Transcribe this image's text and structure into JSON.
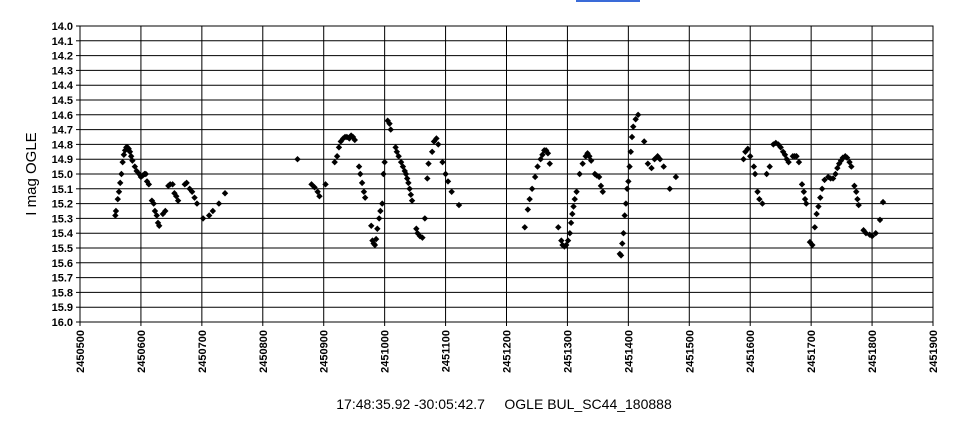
{
  "chart_data": {
    "type": "scatter",
    "title": "17:48:35.92 -30:05:42.7     OGLE BUL_SC44_180888",
    "xlabel": "",
    "ylabel": "I mag OGLE",
    "xlim": [
      2450500,
      2451900
    ],
    "ylim": [
      14.0,
      16.0
    ],
    "y_inverted": true,
    "grid": true,
    "legend": "none",
    "x_ticks": [
      "2450500",
      "2450600",
      "2450700",
      "2450800",
      "2450900",
      "2451000",
      "2451100",
      "2451200",
      "2451300",
      "2451400",
      "2451500",
      "2451600",
      "2451700",
      "2451800",
      "2451900"
    ],
    "y_ticks": [
      "14.0",
      "14.1",
      "14.2",
      "14.3",
      "14.4",
      "14.5",
      "14.6",
      "14.7",
      "14.8",
      "14.9",
      "15.0",
      "15.1",
      "15.2",
      "15.3",
      "15.4",
      "15.5",
      "15.6",
      "15.7",
      "15.8",
      "15.9",
      "16.0"
    ],
    "marker_color": "#000000",
    "series": [
      {
        "points": [
          [
            2450558,
            15.28
          ],
          [
            2450559,
            15.25
          ],
          [
            2450562,
            15.17
          ],
          [
            2450564,
            15.12
          ],
          [
            2450566,
            15.06
          ],
          [
            2450568,
            15.0
          ],
          [
            2450570,
            14.92
          ],
          [
            2450572,
            14.87
          ],
          [
            2450574,
            14.84
          ],
          [
            2450576,
            14.82
          ],
          [
            2450578,
            14.82
          ],
          [
            2450580,
            14.83
          ],
          [
            2450582,
            14.85
          ],
          [
            2450584,
            14.88
          ],
          [
            2450586,
            14.91
          ],
          [
            2450590,
            14.95
          ],
          [
            2450593,
            14.98
          ],
          [
            2450597,
            15.0
          ],
          [
            2450600,
            15.02
          ],
          [
            2450603,
            15.01
          ],
          [
            2450606,
            15.0
          ],
          [
            2450608,
            15.0
          ],
          [
            2450610,
            15.05
          ],
          [
            2450613,
            15.07
          ],
          [
            2450618,
            15.18
          ],
          [
            2450621,
            15.2
          ],
          [
            2450623,
            15.25
          ],
          [
            2450626,
            15.28
          ],
          [
            2450628,
            15.33
          ],
          [
            2450630,
            15.35
          ],
          [
            2450636,
            15.27
          ],
          [
            2450640,
            15.25
          ],
          [
            2450645,
            15.08
          ],
          [
            2450648,
            15.07
          ],
          [
            2450652,
            15.07
          ],
          [
            2450655,
            15.13
          ],
          [
            2450658,
            15.15
          ],
          [
            2450661,
            15.18
          ],
          [
            2450672,
            15.07
          ],
          [
            2450675,
            15.06
          ],
          [
            2450680,
            15.1
          ],
          [
            2450684,
            15.12
          ],
          [
            2450688,
            15.16
          ],
          [
            2450692,
            15.2
          ],
          [
            2450702,
            15.3
          ],
          [
            2450712,
            15.28
          ],
          [
            2450718,
            15.25
          ],
          [
            2450728,
            15.2
          ],
          [
            2450738,
            15.13
          ],
          [
            2450857,
            14.9
          ],
          [
            2450880,
            15.07
          ],
          [
            2450885,
            15.09
          ],
          [
            2450890,
            15.12
          ],
          [
            2450893,
            15.15
          ],
          [
            2450903,
            15.07
          ],
          [
            2450918,
            14.92
          ],
          [
            2450922,
            14.88
          ],
          [
            2450925,
            14.82
          ],
          [
            2450928,
            14.78
          ],
          [
            2450932,
            14.76
          ],
          [
            2450935,
            14.75
          ],
          [
            2450938,
            14.75
          ],
          [
            2450942,
            14.76
          ],
          [
            2450945,
            14.74
          ],
          [
            2450948,
            14.75
          ],
          [
            2450951,
            14.77
          ],
          [
            2450958,
            14.95
          ],
          [
            2450960,
            15.0
          ],
          [
            2450963,
            15.06
          ],
          [
            2450966,
            15.12
          ],
          [
            2450968,
            15.16
          ],
          [
            2450978,
            15.35
          ],
          [
            2450980,
            15.45
          ],
          [
            2450982,
            15.47
          ],
          [
            2450984,
            15.48
          ],
          [
            2450986,
            15.44
          ],
          [
            2450988,
            15.37
          ],
          [
            2450991,
            15.3
          ],
          [
            2450993,
            15.25
          ],
          [
            2450996,
            15.2
          ],
          [
            2450998,
            15.0
          ],
          [
            2451000,
            14.92
          ],
          [
            2451005,
            14.64
          ],
          [
            2451008,
            14.66
          ],
          [
            2451010,
            14.7
          ],
          [
            2451018,
            14.82
          ],
          [
            2451020,
            14.85
          ],
          [
            2451023,
            14.88
          ],
          [
            2451027,
            14.92
          ],
          [
            2451030,
            14.95
          ],
          [
            2451033,
            14.98
          ],
          [
            2451035,
            15.0
          ],
          [
            2451037,
            15.03
          ],
          [
            2451039,
            15.06
          ],
          [
            2451041,
            15.1
          ],
          [
            2451043,
            15.14
          ],
          [
            2451045,
            15.18
          ],
          [
            2451052,
            15.37
          ],
          [
            2451054,
            15.4
          ],
          [
            2451058,
            15.42
          ],
          [
            2451062,
            15.43
          ],
          [
            2451066,
            15.3
          ],
          [
            2451070,
            15.03
          ],
          [
            2451072,
            14.93
          ],
          [
            2451078,
            14.85
          ],
          [
            2451081,
            14.78
          ],
          [
            2451085,
            14.76
          ],
          [
            2451088,
            14.8
          ],
          [
            2451095,
            14.92
          ],
          [
            2451100,
            15.0
          ],
          [
            2451104,
            15.05
          ],
          [
            2451110,
            15.12
          ],
          [
            2451122,
            15.21
          ],
          [
            2451230,
            15.36
          ],
          [
            2451235,
            15.24
          ],
          [
            2451238,
            15.17
          ],
          [
            2451242,
            15.1
          ],
          [
            2451247,
            15.02
          ],
          [
            2451251,
            14.95
          ],
          [
            2451256,
            14.9
          ],
          [
            2451259,
            14.87
          ],
          [
            2451262,
            14.84
          ],
          [
            2451265,
            14.84
          ],
          [
            2451268,
            14.86
          ],
          [
            2451271,
            14.93
          ],
          [
            2451285,
            15.36
          ],
          [
            2451290,
            15.45
          ],
          [
            2451292,
            15.48
          ],
          [
            2451295,
            15.49
          ],
          [
            2451298,
            15.48
          ],
          [
            2451301,
            15.45
          ],
          [
            2451304,
            15.4
          ],
          [
            2451306,
            15.33
          ],
          [
            2451308,
            15.27
          ],
          [
            2451310,
            15.22
          ],
          [
            2451312,
            15.17
          ],
          [
            2451315,
            15.12
          ],
          [
            2451320,
            15.0
          ],
          [
            2451325,
            14.93
          ],
          [
            2451330,
            14.88
          ],
          [
            2451333,
            14.86
          ],
          [
            2451336,
            14.88
          ],
          [
            2451339,
            14.91
          ],
          [
            2451345,
            15.0
          ],
          [
            2451348,
            15.01
          ],
          [
            2451352,
            15.02
          ],
          [
            2451355,
            15.08
          ],
          [
            2451358,
            15.12
          ],
          [
            2451386,
            15.54
          ],
          [
            2451388,
            15.55
          ],
          [
            2451390,
            15.47
          ],
          [
            2451392,
            15.4
          ],
          [
            2451394,
            15.28
          ],
          [
            2451396,
            15.2
          ],
          [
            2451398,
            15.1
          ],
          [
            2451400,
            15.05
          ],
          [
            2451402,
            14.95
          ],
          [
            2451404,
            14.85
          ],
          [
            2451406,
            14.75
          ],
          [
            2451408,
            14.68
          ],
          [
            2451412,
            14.63
          ],
          [
            2451416,
            14.6
          ],
          [
            2451426,
            14.78
          ],
          [
            2451432,
            14.93
          ],
          [
            2451438,
            14.96
          ],
          [
            2451443,
            14.9
          ],
          [
            2451448,
            14.88
          ],
          [
            2451452,
            14.9
          ],
          [
            2451458,
            14.95
          ],
          [
            2451468,
            15.1
          ],
          [
            2451478,
            15.02
          ],
          [
            2451589,
            14.9
          ],
          [
            2451592,
            14.85
          ],
          [
            2451596,
            14.83
          ],
          [
            2451600,
            14.88
          ],
          [
            2451606,
            14.95
          ],
          [
            2451608,
            15.0
          ],
          [
            2451612,
            15.12
          ],
          [
            2451615,
            15.17
          ],
          [
            2451620,
            15.2
          ],
          [
            2451627,
            15.0
          ],
          [
            2451632,
            14.95
          ],
          [
            2451638,
            14.8
          ],
          [
            2451642,
            14.79
          ],
          [
            2451646,
            14.8
          ],
          [
            2451650,
            14.82
          ],
          [
            2451654,
            14.85
          ],
          [
            2451657,
            14.87
          ],
          [
            2451660,
            14.9
          ],
          [
            2451663,
            14.92
          ],
          [
            2451670,
            14.88
          ],
          [
            2451673,
            14.88
          ],
          [
            2451676,
            14.88
          ],
          [
            2451680,
            14.92
          ],
          [
            2451685,
            15.07
          ],
          [
            2451688,
            15.12
          ],
          [
            2451690,
            15.17
          ],
          [
            2451692,
            15.2
          ],
          [
            2451698,
            15.46
          ],
          [
            2451702,
            15.48
          ],
          [
            2451706,
            15.36
          ],
          [
            2451709,
            15.27
          ],
          [
            2451712,
            15.22
          ],
          [
            2451715,
            15.16
          ],
          [
            2451718,
            15.1
          ],
          [
            2451722,
            15.04
          ],
          [
            2451728,
            15.02
          ],
          [
            2451732,
            15.03
          ],
          [
            2451736,
            15.03
          ],
          [
            2451740,
            15.0
          ],
          [
            2451743,
            14.96
          ],
          [
            2451746,
            14.93
          ],
          [
            2451749,
            14.91
          ],
          [
            2451752,
            14.89
          ],
          [
            2451756,
            14.88
          ],
          [
            2451759,
            14.89
          ],
          [
            2451763,
            14.92
          ],
          [
            2451766,
            14.95
          ],
          [
            2451771,
            15.08
          ],
          [
            2451774,
            15.12
          ],
          [
            2451776,
            15.17
          ],
          [
            2451778,
            15.21
          ],
          [
            2451786,
            15.38
          ],
          [
            2451790,
            15.4
          ],
          [
            2451796,
            15.41
          ],
          [
            2451800,
            15.42
          ],
          [
            2451806,
            15.4
          ],
          [
            2451813,
            15.31
          ],
          [
            2451818,
            15.19
          ]
        ]
      }
    ]
  }
}
